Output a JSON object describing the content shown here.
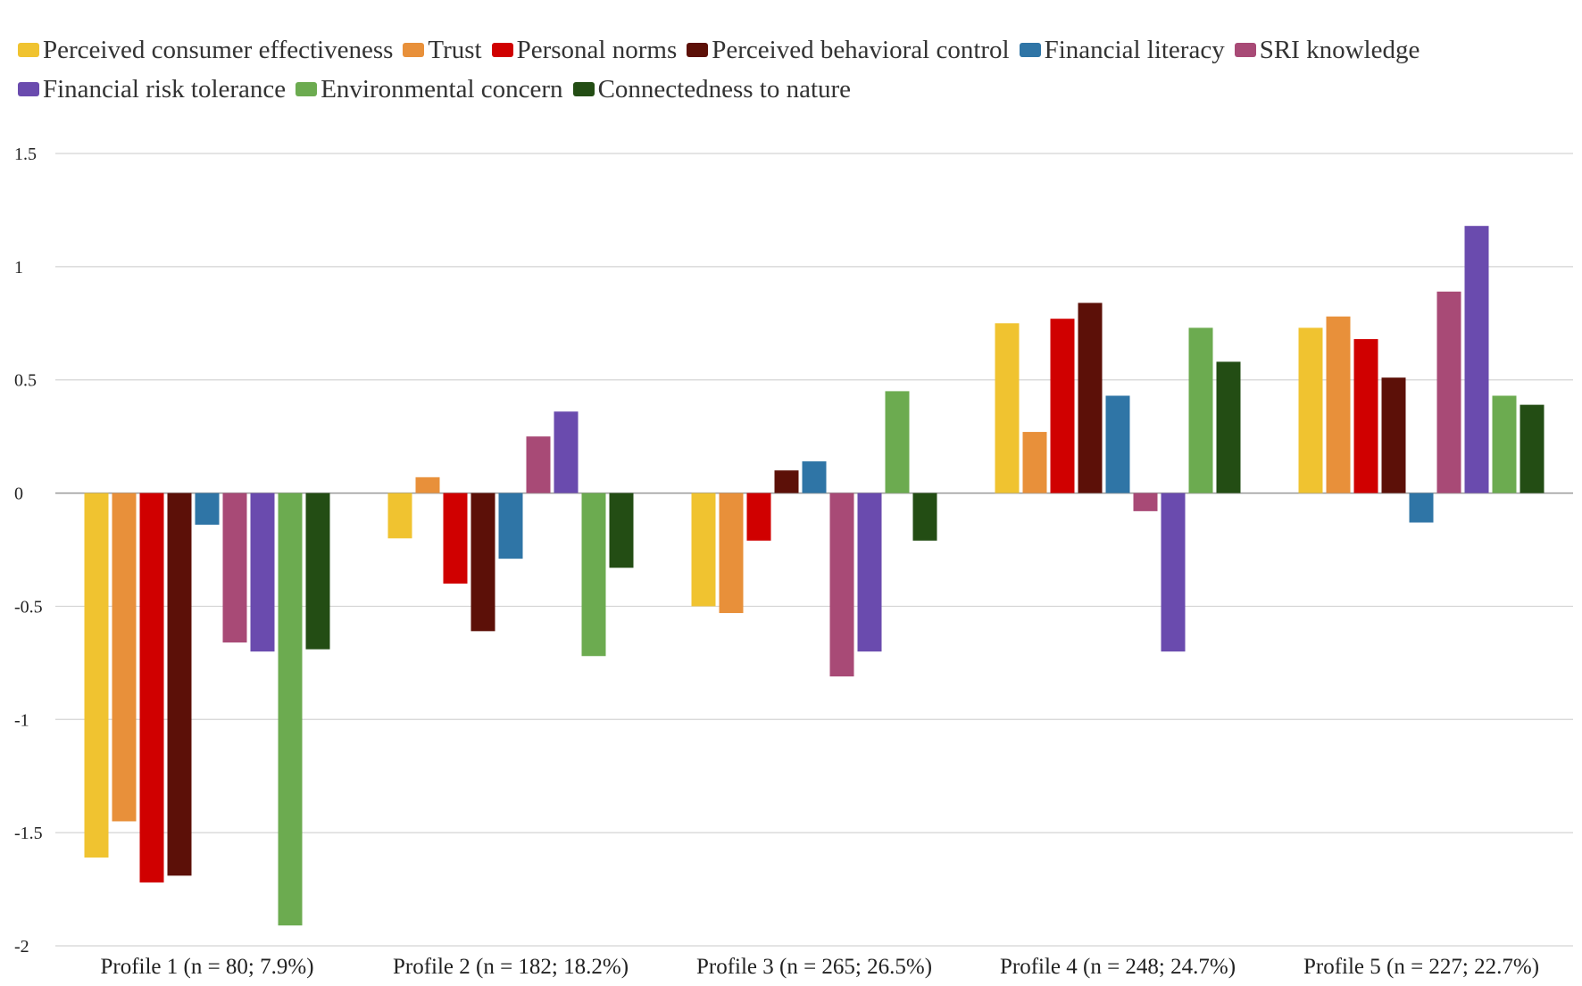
{
  "chart_data": {
    "type": "bar",
    "categories": [
      "Profile 1 (n = 80; 7.9%)",
      "Profile 2 (n = 182; 18.2%)",
      "Profile 3 (n = 265; 26.5%)",
      "Profile 4 (n = 248; 24.7%)",
      "Profile 5 (n = 227; 22.7%)"
    ],
    "series": [
      {
        "name": "Perceived consumer effectiveness",
        "color": "#F0C330",
        "values": [
          -1.61,
          -0.2,
          -0.5,
          0.75,
          0.73
        ]
      },
      {
        "name": "Trust",
        "color": "#E8903A",
        "values": [
          -1.45,
          0.07,
          -0.53,
          0.27,
          0.78
        ]
      },
      {
        "name": "Personal norms",
        "color": "#D00000",
        "values": [
          -1.72,
          -0.4,
          -0.21,
          0.77,
          0.68
        ]
      },
      {
        "name": "Perceived behavioral control",
        "color": "#5C1008",
        "values": [
          -1.69,
          -0.61,
          0.1,
          0.84,
          0.51
        ]
      },
      {
        "name": "Financial literacy",
        "color": "#2F75A6",
        "values": [
          -0.14,
          -0.29,
          0.14,
          0.43,
          -0.13
        ]
      },
      {
        "name": "SRI knowledge",
        "color": "#A84A76",
        "values": [
          -0.66,
          0.25,
          -0.81,
          -0.08,
          0.89
        ]
      },
      {
        "name": "Financial risk tolerance",
        "color": "#6A4BAE",
        "values": [
          -0.7,
          0.36,
          -0.7,
          -0.7,
          1.18
        ]
      },
      {
        "name": "Environmental concern",
        "color": "#6CAB50",
        "values": [
          -1.91,
          -0.72,
          0.45,
          0.73,
          0.43
        ]
      },
      {
        "name": "Connectedness to nature",
        "color": "#234D14",
        "values": [
          -0.69,
          -0.33,
          -0.21,
          0.58,
          0.39
        ]
      }
    ],
    "yticks": [
      "1.5",
      "1",
      "0.5",
      "0",
      "-0.5",
      "-1",
      "-1.5",
      "-2"
    ],
    "ylim": [
      -2,
      1.5
    ],
    "grid": true,
    "legend_position": "top",
    "xlabel": "",
    "ylabel": ""
  }
}
